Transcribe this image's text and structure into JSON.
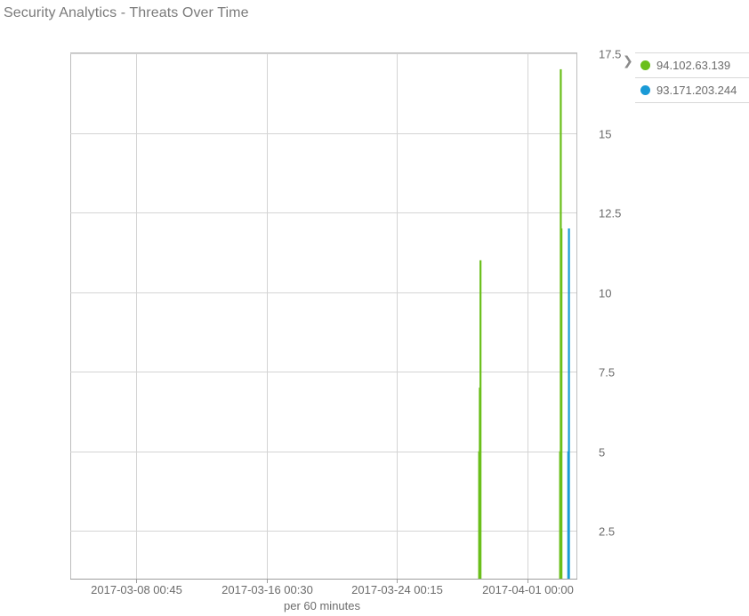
{
  "panel": {
    "title": "Security Analytics - Threats Over Time"
  },
  "legend": {
    "toggle_icon": "chevron-right-icon",
    "items": [
      {
        "label": "94.102.63.139",
        "color": "#6abf1a"
      },
      {
        "label": "93.171.203.244",
        "color": "#1a9ad6"
      }
    ]
  },
  "chart_data": {
    "type": "bar",
    "stacked": true,
    "title": "Security Analytics - Threats Over Time",
    "xlabel": "per 60 minutes",
    "ylabel": "",
    "x_axis": {
      "type": "time",
      "range": [
        "2017-03-04 00:00",
        "2017-04-04 00:00"
      ],
      "ticks": [
        {
          "label": "2017-03-08 00:45",
          "value": "2017-03-08 00:45"
        },
        {
          "label": "2017-03-16 00:30",
          "value": "2017-03-16 00:30"
        },
        {
          "label": "2017-03-24 00:15",
          "value": "2017-03-24 00:15"
        },
        {
          "label": "2017-04-01 00:00",
          "value": "2017-04-01 00:00"
        }
      ]
    },
    "y_axis": {
      "position": "right",
      "range": [
        1,
        17.5
      ],
      "ticks": [
        {
          "label": "2.5",
          "value": 2.5
        },
        {
          "label": "5",
          "value": 5
        },
        {
          "label": "7.5",
          "value": 7.5
        },
        {
          "label": "10",
          "value": 10
        },
        {
          "label": "12.5",
          "value": 12.5
        },
        {
          "label": "15",
          "value": 15
        },
        {
          "label": "17.5",
          "value": 17.5
        }
      ]
    },
    "grid": true,
    "legend_position": "top-right",
    "series": [
      {
        "name": "94.102.63.139",
        "color": "#6abf1a",
        "points": [
          {
            "x": "2017-03-29 01:00",
            "y": 5
          },
          {
            "x": "2017-03-29 02:00",
            "y": 7
          },
          {
            "x": "2017-03-29 03:00",
            "y": 11
          },
          {
            "x": "2017-04-03 00:00",
            "y": 5
          },
          {
            "x": "2017-04-03 01:00",
            "y": 17
          },
          {
            "x": "2017-04-03 02:00",
            "y": 12
          }
        ]
      },
      {
        "name": "93.171.203.244",
        "color": "#1a9ad6",
        "points": [
          {
            "x": "2017-04-03 12:00",
            "y": 5
          },
          {
            "x": "2017-04-03 13:00",
            "y": 12
          }
        ]
      }
    ]
  }
}
